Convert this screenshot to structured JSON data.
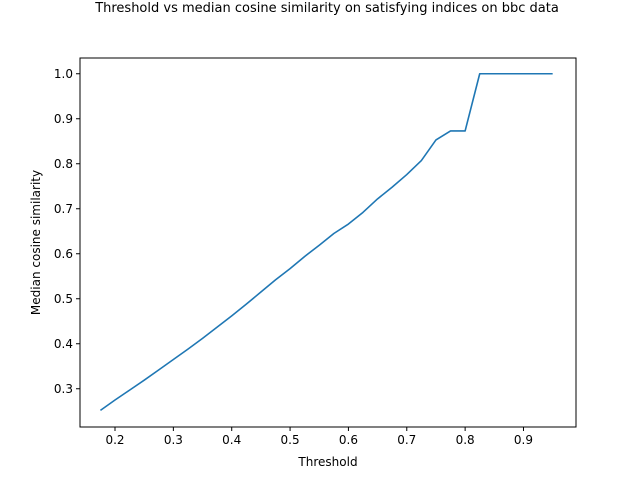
{
  "chart_data": {
    "type": "line",
    "title": "Threshold vs median cosine similarity on satisfying indices on bbc data",
    "xlabel": "Threshold",
    "ylabel": "Median cosine similarity",
    "xlim": [
      0.14,
      0.99
    ],
    "ylim": [
      0.215,
      1.035
    ],
    "xticks": [
      "0.2",
      "0.3",
      "0.4",
      "0.5",
      "0.6",
      "0.7",
      "0.8",
      "0.9"
    ],
    "yticks": [
      "0.3",
      "0.4",
      "0.5",
      "0.6",
      "0.7",
      "0.8",
      "0.9",
      "1.0"
    ],
    "grid": false,
    "series": [
      {
        "color": "#1f77b4",
        "x": [
          0.175,
          0.2,
          0.225,
          0.25,
          0.275,
          0.3,
          0.325,
          0.35,
          0.375,
          0.4,
          0.425,
          0.45,
          0.475,
          0.5,
          0.525,
          0.55,
          0.575,
          0.6,
          0.625,
          0.65,
          0.675,
          0.7,
          0.725,
          0.75,
          0.775,
          0.8,
          0.825,
          0.85,
          0.875,
          0.9,
          0.925,
          0.95
        ],
        "y": [
          0.252,
          0.275,
          0.297,
          0.319,
          0.342,
          0.365,
          0.388,
          0.412,
          0.437,
          0.462,
          0.488,
          0.515,
          0.542,
          0.567,
          0.594,
          0.619,
          0.645,
          0.666,
          0.692,
          0.722,
          0.748,
          0.776,
          0.807,
          0.853,
          0.873,
          0.873,
          1.0,
          1.0,
          1.0,
          1.0,
          1.0,
          1.0
        ]
      }
    ]
  }
}
